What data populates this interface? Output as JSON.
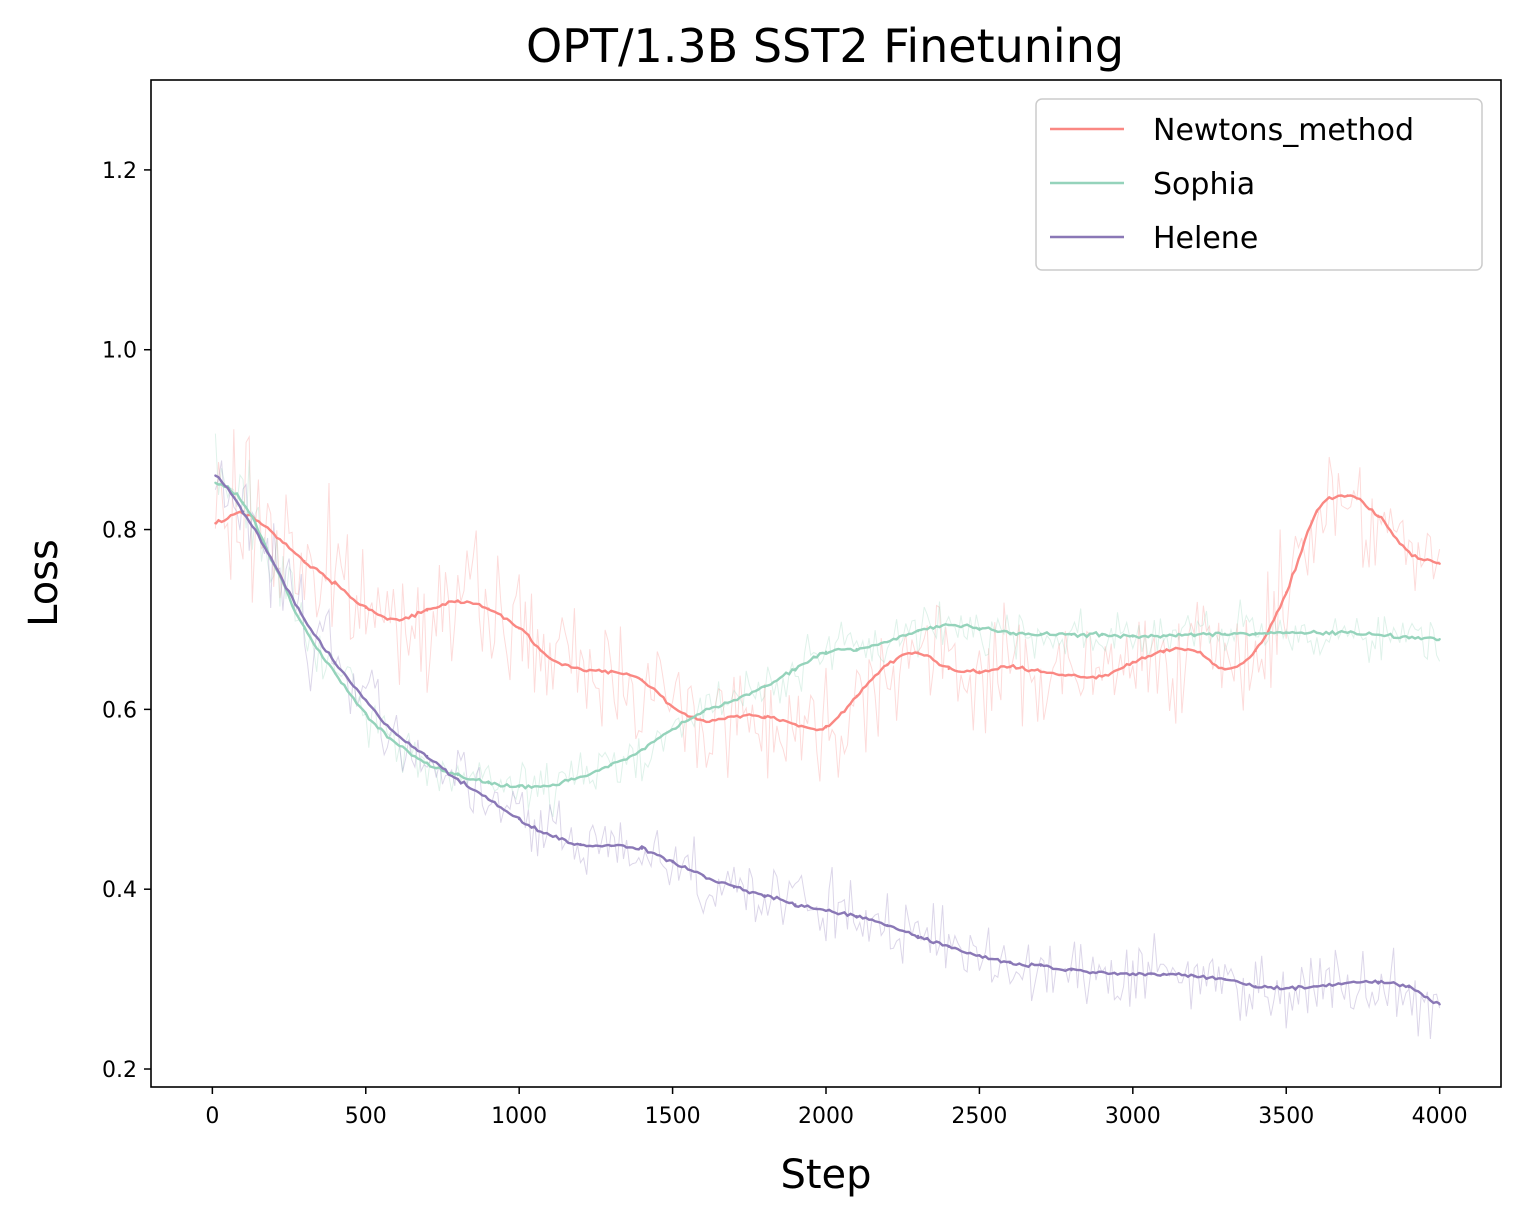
{
  "chart_data": {
    "type": "line",
    "title": "OPT/1.3B SST2 Finetuning",
    "xlabel": "Step",
    "ylabel": "Loss",
    "xlim": [
      -200,
      4200
    ],
    "ylim": [
      0.18,
      1.3
    ],
    "xticks": [
      0,
      500,
      1000,
      1500,
      2000,
      2500,
      3000,
      3500,
      4000
    ],
    "yticks": [
      0.2,
      0.4,
      0.6,
      0.8,
      1.0,
      1.2
    ],
    "ytick_labels": [
      "0.2",
      "0.4",
      "0.6",
      "0.8",
      "1.0",
      "1.2"
    ],
    "grid": false,
    "legend_position": "top-right",
    "x": [
      10,
      100,
      200,
      300,
      400,
      500,
      600,
      700,
      800,
      900,
      1000,
      1100,
      1200,
      1300,
      1400,
      1500,
      1600,
      1700,
      1800,
      1900,
      2000,
      2100,
      2200,
      2300,
      2400,
      2500,
      2600,
      2700,
      2800,
      2900,
      3000,
      3100,
      3200,
      3300,
      3400,
      3500,
      3600,
      3700,
      3800,
      3900,
      4000
    ],
    "series": [
      {
        "name": "Newtons_method",
        "color": "#fa8883",
        "values": [
          0.807,
          0.818,
          0.795,
          0.765,
          0.74,
          0.713,
          0.7,
          0.71,
          0.72,
          0.712,
          0.69,
          0.657,
          0.645,
          0.642,
          0.633,
          0.603,
          0.588,
          0.592,
          0.592,
          0.583,
          0.58,
          0.615,
          0.65,
          0.663,
          0.645,
          0.642,
          0.647,
          0.642,
          0.638,
          0.637,
          0.652,
          0.665,
          0.665,
          0.645,
          0.665,
          0.73,
          0.82,
          0.838,
          0.815,
          0.775,
          0.762
        ]
      },
      {
        "name": "Sophia",
        "color": "#95d3bb",
        "values": [
          0.852,
          0.83,
          0.762,
          0.69,
          0.64,
          0.595,
          0.562,
          0.54,
          0.527,
          0.518,
          0.514,
          0.515,
          0.525,
          0.538,
          0.555,
          0.578,
          0.597,
          0.61,
          0.625,
          0.645,
          0.664,
          0.667,
          0.675,
          0.687,
          0.694,
          0.69,
          0.685,
          0.684,
          0.683,
          0.683,
          0.681,
          0.682,
          0.683,
          0.684,
          0.685,
          0.685,
          0.685,
          0.685,
          0.683,
          0.68,
          0.678
        ]
      },
      {
        "name": "Helene",
        "color": "#8a78b6",
        "values": [
          0.86,
          0.82,
          0.762,
          0.7,
          0.652,
          0.61,
          0.572,
          0.548,
          0.522,
          0.5,
          0.478,
          0.46,
          0.45,
          0.448,
          0.445,
          0.43,
          0.415,
          0.402,
          0.393,
          0.383,
          0.376,
          0.37,
          0.36,
          0.348,
          0.336,
          0.326,
          0.318,
          0.315,
          0.31,
          0.308,
          0.306,
          0.305,
          0.303,
          0.3,
          0.292,
          0.29,
          0.292,
          0.296,
          0.297,
          0.291,
          0.272
        ]
      }
    ]
  }
}
